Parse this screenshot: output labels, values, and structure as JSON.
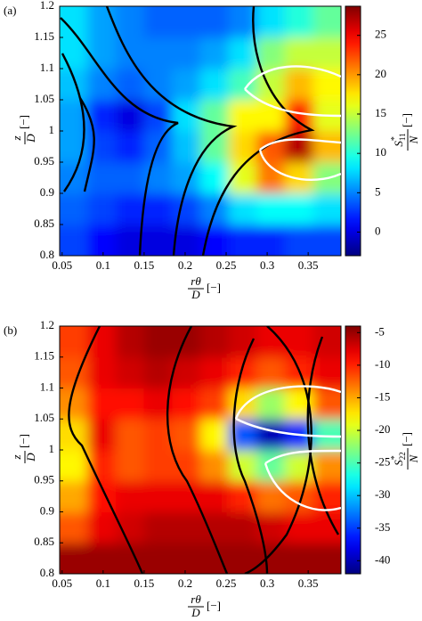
{
  "chart_data": [
    {
      "type": "contour",
      "panel_label": "(a)",
      "xlabel": {
        "numerator": "rθ",
        "denominator": "D",
        "unit": "[−]"
      },
      "ylabel": {
        "numerator": "z",
        "denominator": "D",
        "unit": "[−]"
      },
      "colorbar_label": {
        "symbol": "S",
        "sup": "*",
        "sub": "11",
        "denominator": "N",
        "unit": "[−]"
      },
      "colormap": "jet",
      "x": [
        0.064,
        0.098,
        0.133,
        0.167,
        0.201,
        0.236,
        0.27,
        0.304,
        0.339,
        0.373
      ],
      "y": [
        0.825,
        0.875,
        0.925,
        0.975,
        1.025,
        1.075,
        1.125,
        1.175
      ],
      "z": [
        [
          3,
          1,
          0,
          0,
          0,
          1,
          2,
          2,
          3,
          3
        ],
        [
          4,
          3,
          2,
          2,
          3,
          5,
          8,
          9,
          9,
          8
        ],
        [
          5,
          4,
          4,
          5,
          6,
          9,
          16,
          21,
          18,
          13
        ],
        [
          6,
          3,
          2,
          4,
          7,
          12,
          18,
          22,
          27,
          19
        ],
        [
          6,
          2,
          0,
          3,
          8,
          12,
          17,
          17,
          24,
          16
        ],
        [
          7,
          5,
          4,
          5,
          6,
          8,
          11,
          15,
          19,
          17
        ],
        [
          8,
          6,
          5,
          5,
          5,
          6,
          8,
          13,
          15,
          15
        ],
        [
          8,
          6,
          5,
          4,
          4,
          4,
          5,
          8,
          10,
          12
        ]
      ],
      "xlim": [
        0.047,
        0.39
      ],
      "ylim": [
        0.8,
        1.2
      ],
      "xticks": [
        0.05,
        0.1,
        0.15,
        0.2,
        0.25,
        0.3,
        0.35
      ],
      "yticks": [
        0.8,
        0.85,
        0.9,
        0.95,
        1,
        1.05,
        1.1,
        1.15,
        1.2
      ],
      "clim": [
        -3,
        28.7
      ],
      "cticks": [
        0,
        5,
        10,
        15,
        20,
        25
      ]
    },
    {
      "type": "contour",
      "panel_label": "(b)",
      "xlabel": {
        "numerator": "rθ",
        "denominator": "D",
        "unit": "[−]"
      },
      "ylabel": {
        "numerator": "z",
        "denominator": "D",
        "unit": "[−]"
      },
      "colorbar_label": {
        "symbol": "S",
        "sup": "*",
        "sub": "22",
        "denominator": "N",
        "unit": "[−]"
      },
      "colormap": "jet",
      "x": [
        0.064,
        0.098,
        0.133,
        0.167,
        0.201,
        0.236,
        0.27,
        0.304,
        0.339,
        0.373
      ],
      "y": [
        0.825,
        0.875,
        0.925,
        0.975,
        1.025,
        1.075,
        1.125,
        1.175
      ],
      "z": [
        [
          -5,
          -5,
          -5,
          -5,
          -5,
          -5,
          -5,
          -5,
          -5,
          -5
        ],
        [
          -12,
          -8,
          -7,
          -6,
          -6,
          -6,
          -6,
          -7,
          -8,
          -8
        ],
        [
          -15,
          -9,
          -8,
          -8,
          -8,
          -8,
          -10,
          -13,
          -12,
          -10
        ],
        [
          -18,
          -10,
          -12,
          -11,
          -11,
          -14,
          -20,
          -24,
          -20,
          -14
        ],
        [
          -17,
          -8,
          -12,
          -11,
          -12,
          -18,
          -34,
          -40,
          -36,
          -25
        ],
        [
          -14,
          -9,
          -9,
          -8,
          -9,
          -11,
          -17,
          -22,
          -18,
          -12
        ],
        [
          -12,
          -8,
          -7,
          -6,
          -7,
          -8,
          -10,
          -12,
          -10,
          -8
        ],
        [
          -11,
          -8,
          -6,
          -5,
          -5,
          -6,
          -7,
          -8,
          -8,
          -7
        ]
      ],
      "xlim": [
        0.047,
        0.39
      ],
      "ylim": [
        0.8,
        1.2
      ],
      "xticks": [
        0.05,
        0.1,
        0.15,
        0.2,
        0.25,
        0.3,
        0.35
      ],
      "yticks": [
        0.8,
        0.85,
        0.9,
        0.95,
        1,
        1.05,
        1.1,
        1.15,
        1.2
      ],
      "clim": [
        -42,
        -4
      ],
      "cticks": [
        -40,
        -35,
        -30,
        -25,
        -20,
        -15,
        -10,
        -5
      ]
    }
  ]
}
